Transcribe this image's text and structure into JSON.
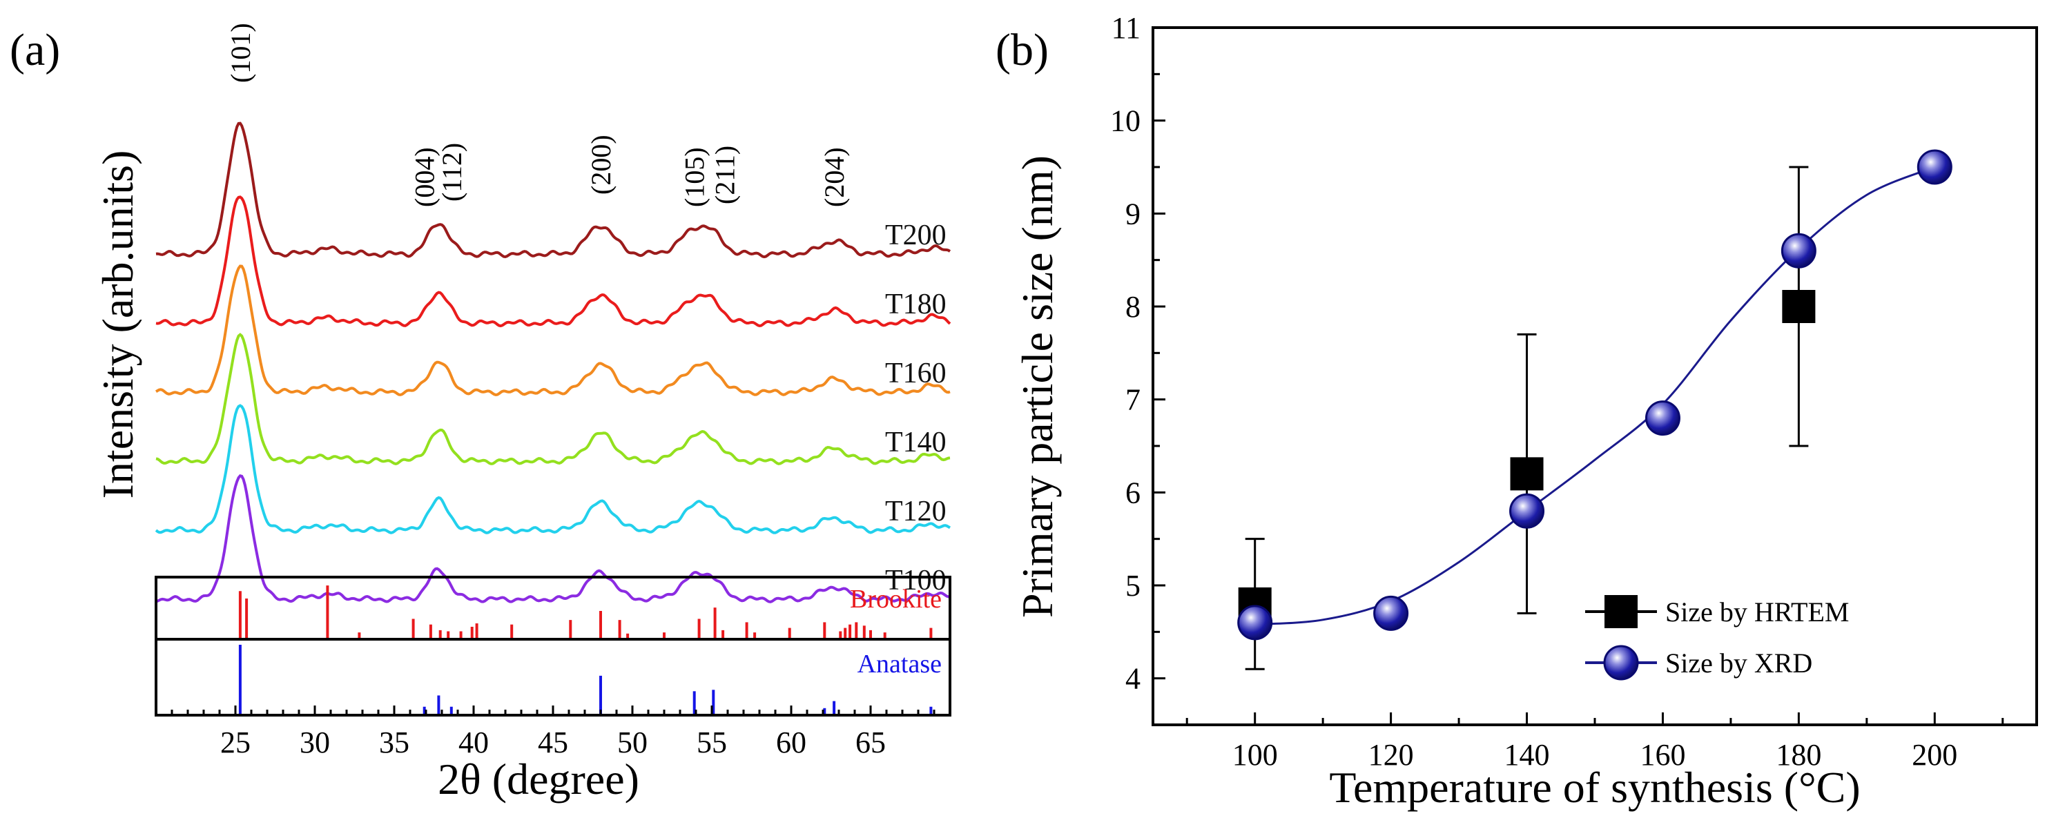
{
  "colors": {
    "brookite": "#e8191c",
    "anatase": "#1515e6",
    "fit_line": "#1a1a8c",
    "marker_xrd_edge": "#0a0a6e",
    "marker_xrd_fill": "#1c1ca8",
    "marker_hrtem": "#000000"
  },
  "chart_data": [
    {
      "type": "line",
      "panel": "(a)",
      "xlabel": "2θ (degree)",
      "ylabel": "Intensity (arb.units)",
      "xlim": [
        20,
        70
      ],
      "xticks": [
        25,
        30,
        35,
        40,
        45,
        50,
        55,
        60,
        65
      ],
      "peak_labels": [
        {
          "text": "(101)",
          "x": 25.3
        },
        {
          "text": "(004)",
          "x": 36.9
        },
        {
          "text": "(112)",
          "x": 38.6
        },
        {
          "text": "(200)",
          "x": 48.0
        },
        {
          "text": "(105)",
          "x": 53.9
        },
        {
          "text": "(211)",
          "x": 55.8
        },
        {
          "text": "(204)",
          "x": 62.7
        }
      ],
      "peaks": [
        {
          "center": 25.3,
          "width": 0.75,
          "height": 1.0
        },
        {
          "center": 30.8,
          "width": 0.9,
          "height": 0.04
        },
        {
          "center": 37.8,
          "width": 0.65,
          "height": 0.24
        },
        {
          "center": 48.0,
          "width": 0.85,
          "height": 0.22
        },
        {
          "center": 54.1,
          "width": 1.0,
          "height": 0.2
        },
        {
          "center": 55.2,
          "width": 0.6,
          "height": 0.06
        },
        {
          "center": 62.7,
          "width": 0.85,
          "height": 0.1
        },
        {
          "center": 68.9,
          "width": 0.7,
          "height": 0.05
        }
      ],
      "series": [
        {
          "name": "T200",
          "color": "#9b1b1b",
          "scale": 1.0
        },
        {
          "name": "T180",
          "color": "#ea1c1c",
          "scale": 0.99
        },
        {
          "name": "T160",
          "color": "#f28a1f",
          "scale": 0.98
        },
        {
          "name": "T140",
          "color": "#93e01e",
          "scale": 0.97
        },
        {
          "name": "T120",
          "color": "#22d0ec",
          "scale": 0.96
        },
        {
          "name": "T100",
          "color": "#8b2be2",
          "scale": 0.94
        }
      ],
      "reference_patterns": [
        {
          "name": "Brookite",
          "color": "#e8191c",
          "peaks": [
            {
              "x": 25.3,
              "i": 0.85
            },
            {
              "x": 25.7,
              "i": 0.72
            },
            {
              "x": 30.8,
              "i": 0.95
            },
            {
              "x": 32.8,
              "i": 0.12
            },
            {
              "x": 36.2,
              "i": 0.36
            },
            {
              "x": 37.3,
              "i": 0.26
            },
            {
              "x": 37.9,
              "i": 0.16
            },
            {
              "x": 38.4,
              "i": 0.14
            },
            {
              "x": 39.2,
              "i": 0.14
            },
            {
              "x": 39.9,
              "i": 0.22
            },
            {
              "x": 40.2,
              "i": 0.28
            },
            {
              "x": 42.4,
              "i": 0.26
            },
            {
              "x": 46.1,
              "i": 0.34
            },
            {
              "x": 48.0,
              "i": 0.5
            },
            {
              "x": 49.2,
              "i": 0.34
            },
            {
              "x": 49.7,
              "i": 0.1
            },
            {
              "x": 52.0,
              "i": 0.12
            },
            {
              "x": 54.2,
              "i": 0.36
            },
            {
              "x": 55.2,
              "i": 0.56
            },
            {
              "x": 55.7,
              "i": 0.16
            },
            {
              "x": 57.2,
              "i": 0.3
            },
            {
              "x": 57.7,
              "i": 0.12
            },
            {
              "x": 59.9,
              "i": 0.2
            },
            {
              "x": 62.1,
              "i": 0.3
            },
            {
              "x": 63.1,
              "i": 0.14
            },
            {
              "x": 63.4,
              "i": 0.2
            },
            {
              "x": 63.7,
              "i": 0.26
            },
            {
              "x": 64.1,
              "i": 0.3
            },
            {
              "x": 64.6,
              "i": 0.24
            },
            {
              "x": 65.0,
              "i": 0.16
            },
            {
              "x": 65.9,
              "i": 0.12
            },
            {
              "x": 68.8,
              "i": 0.2
            }
          ]
        },
        {
          "name": "Anatase",
          "color": "#1515e6",
          "peaks": [
            {
              "x": 25.3,
              "i": 1.0
            },
            {
              "x": 36.9,
              "i": 0.12
            },
            {
              "x": 37.8,
              "i": 0.28
            },
            {
              "x": 38.6,
              "i": 0.12
            },
            {
              "x": 48.0,
              "i": 0.56
            },
            {
              "x": 53.9,
              "i": 0.34
            },
            {
              "x": 55.1,
              "i": 0.36
            },
            {
              "x": 62.1,
              "i": 0.1
            },
            {
              "x": 62.7,
              "i": 0.2
            },
            {
              "x": 68.8,
              "i": 0.12
            }
          ]
        }
      ]
    },
    {
      "type": "scatter",
      "panel": "(b)",
      "xlabel": "Temperature of synthesis (°C)",
      "ylabel": "Primary particle size (nm)",
      "xlim": [
        85,
        215
      ],
      "ylim": [
        3.5,
        11
      ],
      "xticks": [
        100,
        120,
        140,
        160,
        180,
        200
      ],
      "yticks": [
        4,
        5,
        6,
        7,
        8,
        9,
        10,
        11
      ],
      "legend_position": "bottom-right",
      "series": [
        {
          "name": "Size by HRTEM",
          "marker": "square",
          "x": [
            100,
            140,
            180
          ],
          "y": [
            4.8,
            6.2,
            8.0
          ],
          "yerr_low": [
            4.1,
            4.7,
            6.5
          ],
          "yerr_high": [
            5.5,
            7.7,
            9.5
          ]
        },
        {
          "name": "Size by XRD",
          "marker": "sphere",
          "x": [
            100,
            120,
            140,
            160,
            180,
            200
          ],
          "y": [
            4.6,
            4.7,
            5.8,
            6.8,
            8.6,
            9.5
          ],
          "fit": {
            "x": [
              100,
              110,
              120,
              130,
              140,
              150,
              160,
              170,
              180,
              190,
              200
            ],
            "y": [
              4.58,
              4.63,
              4.83,
              5.25,
              5.8,
              6.35,
              6.95,
              7.85,
              8.62,
              9.2,
              9.5
            ]
          }
        }
      ]
    }
  ]
}
